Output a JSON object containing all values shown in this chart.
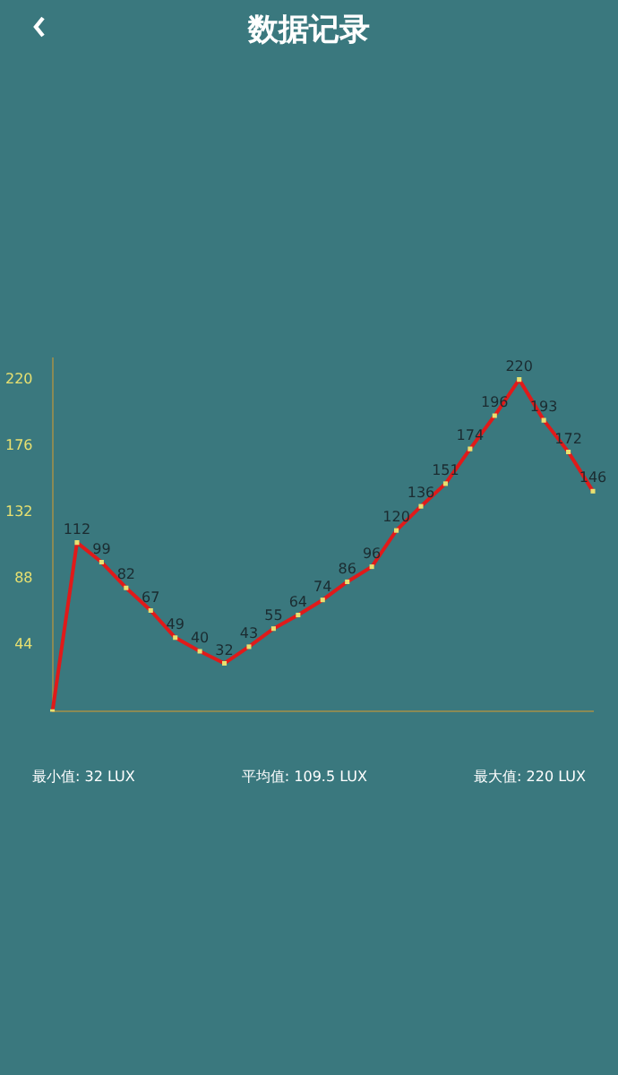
{
  "chart_data": {
    "type": "line",
    "title": "数据记录",
    "categories": [
      null,
      null,
      null,
      null,
      null,
      null,
      null,
      null,
      null,
      null,
      null,
      null,
      null,
      null,
      null,
      null,
      null,
      null,
      null,
      null,
      null,
      null,
      null
    ],
    "series": [
      {
        "color": "#e01a1a",
        "values": [
          0,
          112,
          99,
          82,
          67,
          49,
          40,
          32,
          43,
          55,
          64,
          74,
          86,
          96,
          120,
          136,
          151,
          174,
          196,
          220,
          193,
          172,
          146
        ]
      }
    ],
    "value_labels": [
      null,
      "112",
      "99",
      "82",
      "67",
      "49",
      "40",
      "32",
      "43",
      "55",
      "64",
      "74",
      "86",
      "96",
      "120",
      "136",
      "151",
      "174",
      "196",
      "220",
      "193",
      "172",
      "146"
    ],
    "ylim": [
      0,
      234
    ],
    "yticks": [
      44,
      88,
      132,
      176,
      220
    ],
    "grid": false,
    "legend": false,
    "marker": "square",
    "line_style": "solid",
    "tick_labels": "y",
    "annotations": [
      "最小值: 32 LUX",
      "平均值: 109.5 LUX",
      "最大值: 220 LUX"
    ]
  }
}
